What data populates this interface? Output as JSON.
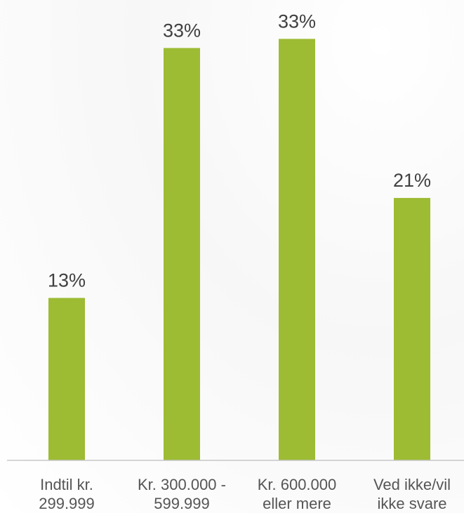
{
  "chart_data": {
    "type": "bar",
    "categories": [
      [
        "Indtil kr.",
        "299.999"
      ],
      [
        "Kr. 300.000 -",
        "599.999"
      ],
      [
        "Kr. 600.000",
        "eller mere"
      ],
      [
        "Ved ikke/vil",
        "ikke svare"
      ]
    ],
    "values": [
      13,
      33,
      33,
      21
    ],
    "data_labels": [
      "13%",
      "33%",
      "33%",
      "21%"
    ],
    "ylim": [
      0,
      36
    ],
    "grid": false,
    "legend": "none",
    "colors": {
      "bar": "#9dbb33",
      "axis": "#c8c8c8",
      "value_text": "#404040",
      "category_text": "#555555"
    }
  }
}
